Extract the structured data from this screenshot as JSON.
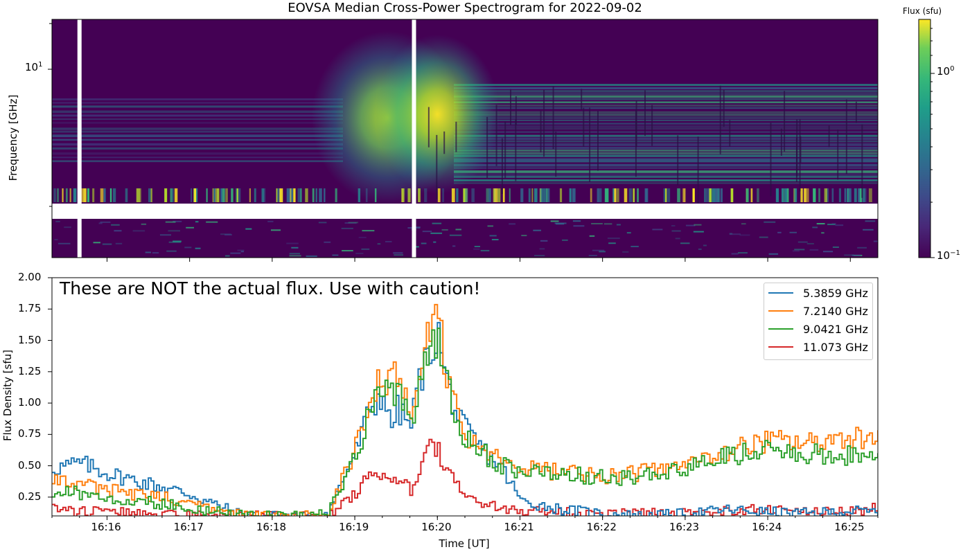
{
  "chart_data": [
    {
      "type": "heatmap",
      "title": "EOVSA Median Cross-Power Spectrogram for 2022-09-02",
      "ylabel": "Frequency [GHz]",
      "y_scale": "log",
      "y_ticks": [
        {
          "value": 10,
          "base": "10",
          "exp": "1"
        }
      ],
      "colorbar": {
        "label": "Flux (sfu)",
        "scale": "log",
        "range": [
          0.1,
          2.0
        ],
        "colormap": "viridis",
        "ticks": [
          {
            "value": 1.0,
            "base": "10",
            "exp": "0"
          },
          {
            "value": 0.1,
            "base": "10",
            "exp": "−1"
          }
        ]
      },
      "features": {
        "burst_peaks_time": [
          "16:19:24",
          "16:20:00"
        ],
        "missing_data_time": [
          "16:15:40",
          "16:19:43"
        ]
      }
    },
    {
      "type": "line",
      "xlabel": "Time [UT]",
      "ylabel": "Flux Density [sfu]",
      "ylim": [
        0.1,
        2.0
      ],
      "xlim": [
        "16:15:20",
        "16:25:20"
      ],
      "x_ticks": [
        "16:16",
        "16:17",
        "16:18",
        "16:19",
        "16:20",
        "16:21",
        "16:22",
        "16:23",
        "16:24",
        "16:25"
      ],
      "y_ticks": [
        "0.25",
        "0.50",
        "0.75",
        "1.00",
        "1.25",
        "1.50",
        "1.75",
        "2.00"
      ],
      "annotation": "These are NOT the actual flux. Use with caution!",
      "legend_position": "top-right",
      "x": [
        "16:15:20",
        "16:15:40",
        "16:16:00",
        "16:16:20",
        "16:16:40",
        "16:17:00",
        "16:17:20",
        "16:17:40",
        "16:18:00",
        "16:18:20",
        "16:18:40",
        "16:18:50",
        "16:19:00",
        "16:19:10",
        "16:19:20",
        "16:19:25",
        "16:19:30",
        "16:19:40",
        "16:19:45",
        "16:19:50",
        "16:19:55",
        "16:20:00",
        "16:20:05",
        "16:20:15",
        "16:20:30",
        "16:20:45",
        "16:21:00",
        "16:21:30",
        "16:22:00",
        "16:22:30",
        "16:23:00",
        "16:23:30",
        "16:24:00",
        "16:24:30",
        "16:25:00",
        "16:25:20"
      ],
      "series": [
        {
          "name": "5.3859 GHz",
          "color": "#1f77b4",
          "values": [
            0.48,
            0.52,
            0.44,
            0.38,
            0.33,
            0.27,
            0.18,
            0.1,
            0.1,
            0.1,
            0.12,
            0.38,
            0.62,
            0.95,
            1.08,
            0.8,
            0.95,
            0.82,
            1.15,
            1.3,
            1.45,
            1.55,
            1.2,
            0.85,
            0.65,
            0.5,
            0.22,
            0.15,
            0.12,
            0.1,
            0.12,
            0.15,
            0.13,
            0.12,
            0.14,
            0.13
          ]
        },
        {
          "name": "7.2140 GHz",
          "color": "#ff7f0e",
          "values": [
            0.4,
            0.36,
            0.3,
            0.28,
            0.25,
            0.2,
            0.15,
            0.1,
            0.1,
            0.1,
            0.12,
            0.4,
            0.65,
            1.05,
            1.2,
            1.15,
            1.25,
            0.88,
            1.2,
            1.45,
            1.6,
            1.68,
            1.3,
            0.82,
            0.62,
            0.55,
            0.48,
            0.45,
            0.42,
            0.45,
            0.5,
            0.62,
            0.7,
            0.68,
            0.74,
            0.72
          ]
        },
        {
          "name": "9.0421 GHz",
          "color": "#2ca02c",
          "values": [
            0.3,
            0.28,
            0.25,
            0.22,
            0.2,
            0.16,
            0.13,
            0.1,
            0.1,
            0.1,
            0.12,
            0.35,
            0.58,
            0.95,
            1.12,
            1.05,
            1.12,
            0.8,
            1.1,
            1.35,
            1.42,
            1.48,
            1.25,
            0.8,
            0.62,
            0.5,
            0.45,
            0.45,
            0.4,
            0.42,
            0.48,
            0.58,
            0.62,
            0.6,
            0.58,
            0.56
          ]
        },
        {
          "name": "11.073 GHz",
          "color": "#d62728",
          "values": [
            0.15,
            0.13,
            0.14,
            0.12,
            0.12,
            0.1,
            0.1,
            0.1,
            0.1,
            0.1,
            0.1,
            0.18,
            0.3,
            0.4,
            0.45,
            0.38,
            0.42,
            0.3,
            0.45,
            0.58,
            0.65,
            0.62,
            0.48,
            0.3,
            0.2,
            0.16,
            0.15,
            0.13,
            0.12,
            0.12,
            0.12,
            0.14,
            0.15,
            0.14,
            0.14,
            0.16
          ]
        }
      ]
    }
  ]
}
